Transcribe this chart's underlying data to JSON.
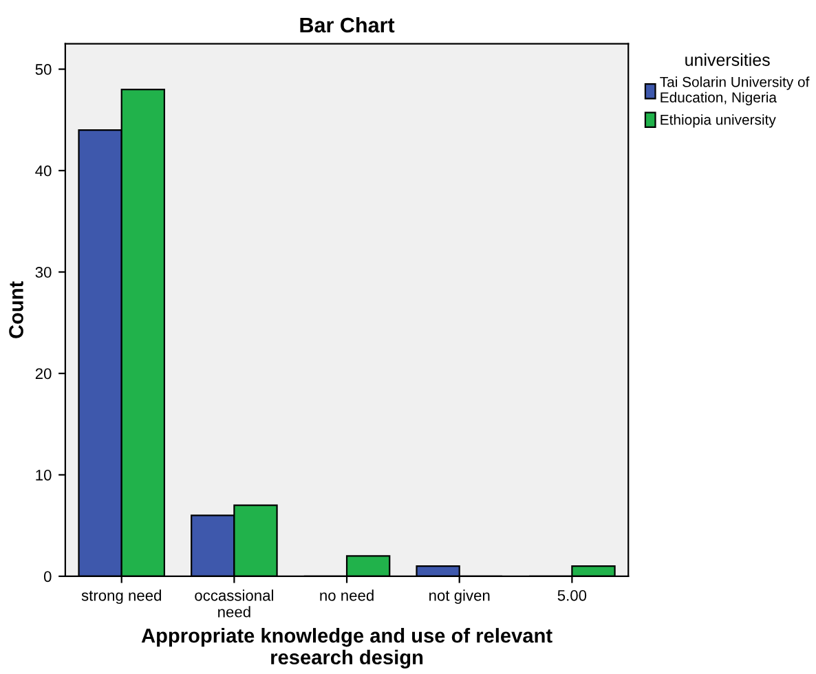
{
  "chart_data": {
    "type": "bar",
    "title": "Bar Chart",
    "categories": [
      "strong need",
      "occassional\nneed",
      "no need",
      "not given",
      "5.00"
    ],
    "series": [
      {
        "name": "Tai Solarin University of\nEducation, Nigeria",
        "color": "#3e58ac",
        "values": [
          44,
          6,
          0,
          1,
          0
        ]
      },
      {
        "name": "Ethiopia university",
        "color": "#21b24b",
        "values": [
          48,
          7,
          2,
          0,
          1
        ]
      }
    ],
    "xlabel": "Appropriate knowledge and use of relevant\nresearch design",
    "ylabel": "Count",
    "legend_title": "universities",
    "legend": "top right",
    "ylim": [
      0,
      52.5
    ],
    "yticks": [
      0,
      10,
      20,
      30,
      40,
      50
    ],
    "grid": false
  }
}
